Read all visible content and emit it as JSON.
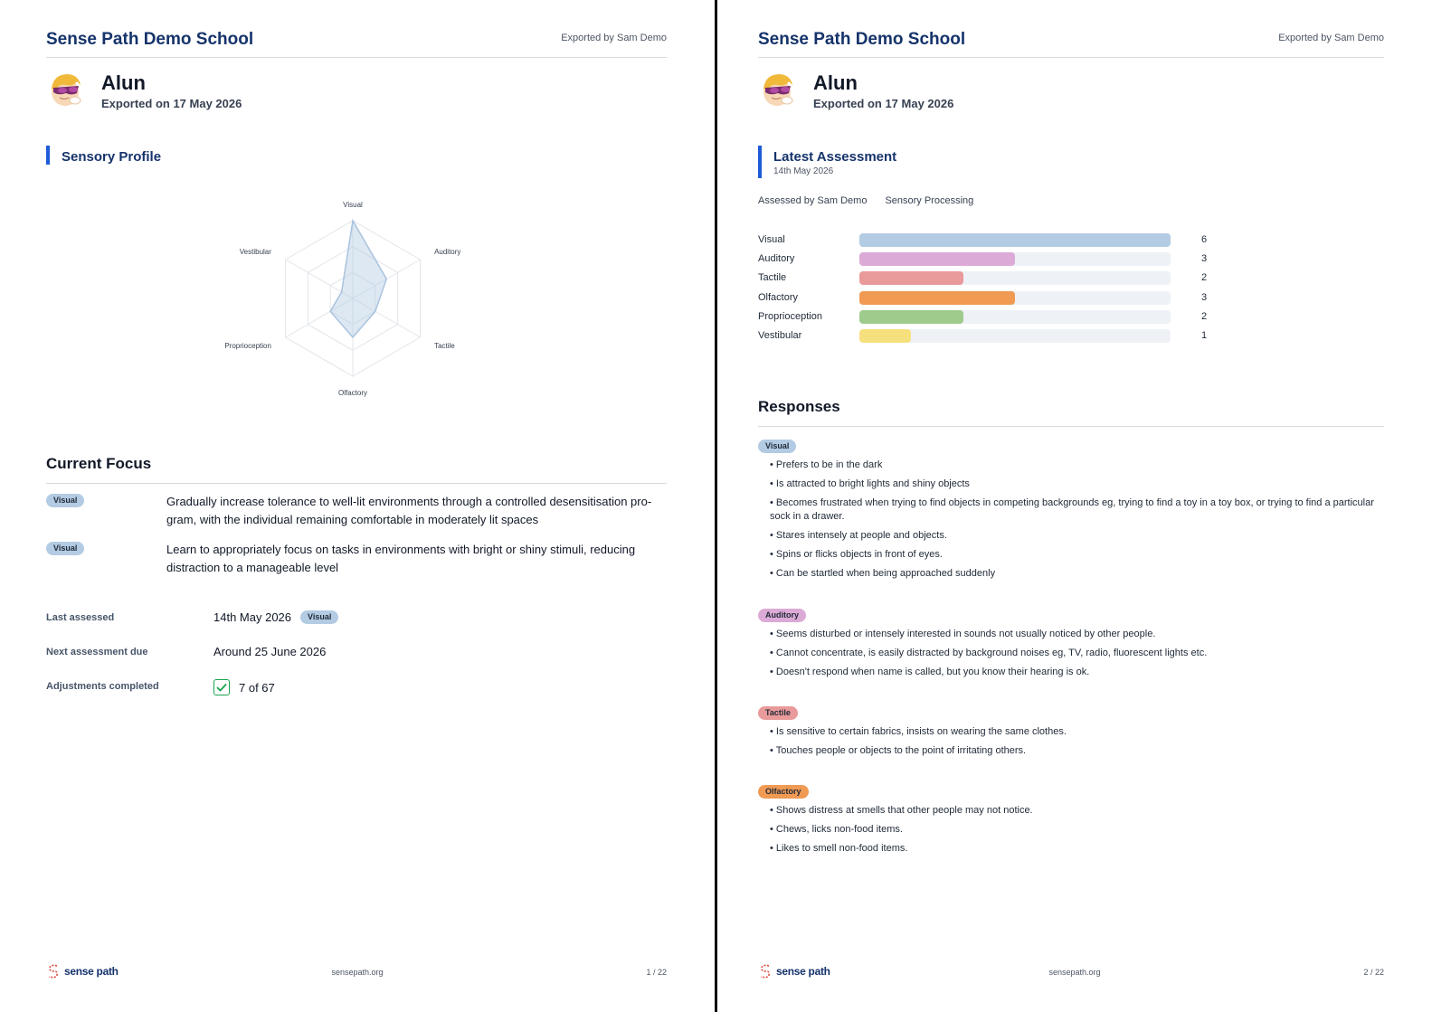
{
  "school_name": "Sense Path Demo School",
  "exported_by": "Exported by Sam Demo",
  "student": {
    "name": "Alun",
    "export_date": "Exported on 17 May 2026"
  },
  "colors": {
    "visual": "#b3cbe3",
    "auditory": "#dcaad6",
    "tactile": "#e99a9a",
    "olfactory": "#f09a53",
    "proprioception": "#9fcb8c",
    "vestibular": "#f6e07e",
    "brand": "#15336b",
    "accent": "#1d5bd8"
  },
  "page1": {
    "sensory_profile_title": "Sensory Profile",
    "current_focus_title": "Current Focus",
    "focus_items": [
      {
        "tag": "Visual",
        "text": "Gradually increase tolerance to well-lit environments through a controlled desensitisation pro-gram, with the individual remaining comfortable in moderately lit spaces"
      },
      {
        "tag": "Visual",
        "text": "Learn to appropriately focus on tasks in environments with bright or shiny stimuli, reducing distraction to a manageable level"
      }
    ],
    "meta": {
      "last_assessed_label": "Last assessed",
      "last_assessed_value": "14th May 2026",
      "last_assessed_tag": "Visual",
      "next_due_label": "Next assessment due",
      "next_due_value": "Around 25 June 2026",
      "adjustments_label": "Adjustments completed",
      "adjustments_value": "7 of 67"
    },
    "footer": {
      "logo_text": "sense path",
      "url": "sensepath.org",
      "page": "1 / 22"
    }
  },
  "chart_data": {
    "type": "radar",
    "axes": [
      "Visual",
      "Auditory",
      "Tactile",
      "Olfactory",
      "Proprioception",
      "Vestibular"
    ],
    "values": [
      6,
      3,
      2,
      3,
      2,
      1
    ],
    "range": [
      0,
      6
    ],
    "rings": 3
  },
  "page2": {
    "latest_title": "Latest Assessment",
    "latest_date": "14th May 2026",
    "assessed_by": "Assessed by Sam Demo",
    "assessment_type": "Sensory Processing",
    "bar_max": 6,
    "bars": [
      {
        "label": "Visual",
        "value": 6,
        "color": "#b3cbe3"
      },
      {
        "label": "Auditory",
        "value": 3,
        "color": "#dcaad6"
      },
      {
        "label": "Tactile",
        "value": 2,
        "color": "#e99a9a"
      },
      {
        "label": "Olfactory",
        "value": 3,
        "color": "#f09a53"
      },
      {
        "label": "Proprioception",
        "value": 2,
        "color": "#9fcb8c"
      },
      {
        "label": "Vestibular",
        "value": 1,
        "color": "#f6e07e"
      }
    ],
    "responses_title": "Responses",
    "responses": [
      {
        "tag": "Visual",
        "items": [
          "Prefers to be in the dark",
          "Is attracted to bright lights and shiny objects",
          "Becomes frustrated when trying to find objects in competing backgrounds eg, trying to find a toy in a toy box, or trying to find a particular sock in a drawer.",
          "Stares intensely at people and objects.",
          "Spins or flicks objects in front of eyes.",
          "Can be startled when being approached suddenly"
        ]
      },
      {
        "tag": "Auditory",
        "items": [
          "Seems disturbed or intensely interested in sounds not usually noticed by other people.",
          "Cannot concentrate, is easily distracted by background noises eg, TV, radio, fluorescent lights etc.",
          "Doesn't respond when name is called, but you know their hearing is ok."
        ]
      },
      {
        "tag": "Tactile",
        "items": [
          "Is sensitive to certain fabrics, insists on wearing the same clothes.",
          "Touches people or objects to the point of irritating others."
        ]
      },
      {
        "tag": "Olfactory",
        "items": [
          "Shows distress at smells that other people may not notice.",
          "Chews, licks non-food items.",
          "Likes to smell non-food items."
        ]
      }
    ],
    "footer": {
      "logo_text": "sense path",
      "url": "sensepath.org",
      "page": "2 / 22"
    }
  }
}
